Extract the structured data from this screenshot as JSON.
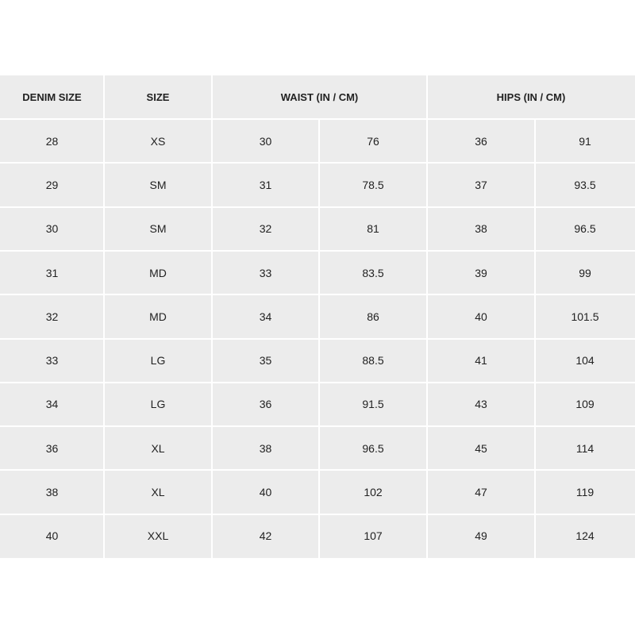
{
  "table": {
    "header": [
      "DENIM SIZE",
      "SIZE",
      "WAIST (IN / CM)",
      "HIPS (IN / CM)"
    ],
    "rows": [
      [
        "28",
        "XS",
        "30",
        "76",
        "36",
        "91"
      ],
      [
        "29",
        "SM",
        "31",
        "78.5",
        "37",
        "93.5"
      ],
      [
        "30",
        "SM",
        "32",
        "81",
        "38",
        "96.5"
      ],
      [
        "31",
        "MD",
        "33",
        "83.5",
        "39",
        "99"
      ],
      [
        "32",
        "MD",
        "34",
        "86",
        "40",
        "101.5"
      ],
      [
        "33",
        "LG",
        "35",
        "88.5",
        "41",
        "104"
      ],
      [
        "34",
        "LG",
        "36",
        "91.5",
        "43",
        "109"
      ],
      [
        "36",
        "XL",
        "38",
        "96.5",
        "45",
        "114"
      ],
      [
        "38",
        "XL",
        "40",
        "102",
        "47",
        "119"
      ],
      [
        "40",
        "XXL",
        "42",
        "107",
        "49",
        "124"
      ]
    ]
  }
}
